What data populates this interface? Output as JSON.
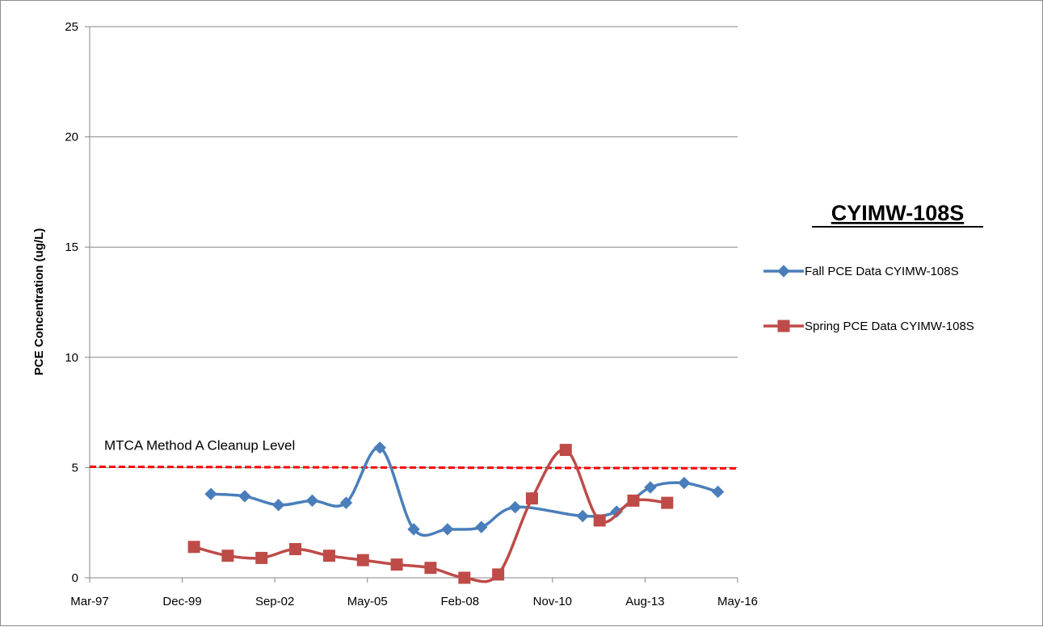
{
  "chart_data": {
    "type": "line",
    "title": "CYIMW-108S",
    "xlabel": "",
    "ylabel": "PCE Concentration (ug/L)",
    "x_tick_labels": [
      "Mar-97",
      "Dec-99",
      "Sep-02",
      "May-05",
      "Feb-08",
      "Nov-10",
      "Aug-13",
      "May-16"
    ],
    "x_range": [
      "1997-03-01",
      "2016-05-01"
    ],
    "ylim": [
      0,
      25
    ],
    "y_ticks": [
      0,
      5,
      10,
      15,
      20,
      25
    ],
    "grid": "horizontal",
    "legend_position": "right",
    "series": [
      {
        "name": "Fall PCE Data CYIMW-108S",
        "color": "#4a7ebb",
        "marker": "diamond",
        "points": [
          {
            "x": "2000-10-01",
            "y": 3.8
          },
          {
            "x": "2001-10-01",
            "y": 3.7
          },
          {
            "x": "2002-10-01",
            "y": 3.3
          },
          {
            "x": "2003-10-01",
            "y": 3.5
          },
          {
            "x": "2004-10-01",
            "y": 3.4
          },
          {
            "x": "2005-10-01",
            "y": 5.9
          },
          {
            "x": "2006-10-01",
            "y": 2.2
          },
          {
            "x": "2007-10-01",
            "y": 2.2
          },
          {
            "x": "2008-10-01",
            "y": 2.3
          },
          {
            "x": "2009-10-01",
            "y": 3.2
          },
          {
            "x": "2011-10-01",
            "y": 2.8
          },
          {
            "x": "2012-10-01",
            "y": 3.0
          },
          {
            "x": "2013-10-01",
            "y": 4.1
          },
          {
            "x": "2014-10-01",
            "y": 4.3
          },
          {
            "x": "2015-10-01",
            "y": 3.9
          }
        ]
      },
      {
        "name": "Spring PCE Data CYIMW-108S",
        "color": "#be4b48",
        "marker": "square",
        "points": [
          {
            "x": "2000-04-01",
            "y": 1.4
          },
          {
            "x": "2001-04-01",
            "y": 1.0
          },
          {
            "x": "2002-04-01",
            "y": 0.9
          },
          {
            "x": "2003-04-01",
            "y": 1.3
          },
          {
            "x": "2004-04-01",
            "y": 1.0
          },
          {
            "x": "2005-04-01",
            "y": 0.8
          },
          {
            "x": "2006-04-01",
            "y": 0.6
          },
          {
            "x": "2007-04-01",
            "y": 0.45
          },
          {
            "x": "2008-04-01",
            "y": 0.0
          },
          {
            "x": "2009-04-01",
            "y": 0.15
          },
          {
            "x": "2010-04-01",
            "y": 3.6
          },
          {
            "x": "2011-04-01",
            "y": 5.8
          },
          {
            "x": "2012-04-01",
            "y": 2.6
          },
          {
            "x": "2013-04-01",
            "y": 3.5
          },
          {
            "x": "2014-04-01",
            "y": 3.4
          }
        ]
      }
    ],
    "reference_line": {
      "label": "MTCA Method A Cleanup Level",
      "y": 5,
      "color": "#ff0000",
      "style": "dashed"
    }
  }
}
